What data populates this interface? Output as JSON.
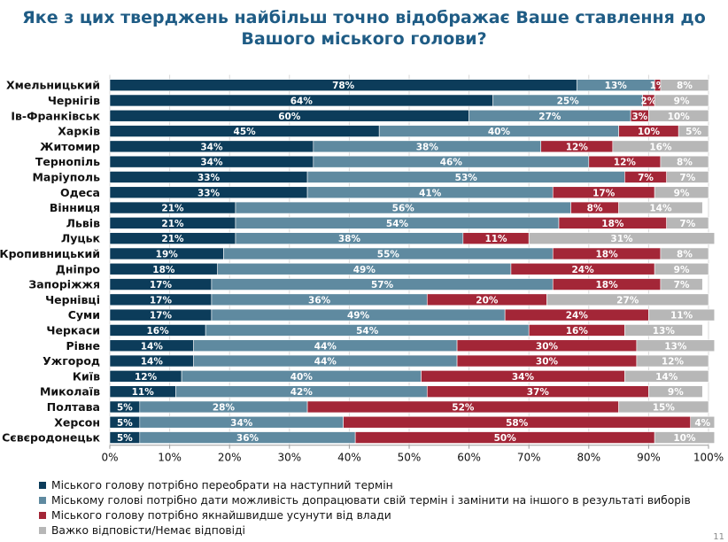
{
  "title_lines": [
    "Яке з цих тверджень найбільш точно відображає Ваше ставлення до",
    "Вашого міського голови?"
  ],
  "page_number": "11",
  "colors": {
    "title": "#1f5c85",
    "series": [
      "#0c3c5a",
      "#5f8aa0",
      "#a32637",
      "#b7b7b7"
    ]
  },
  "chart_data": {
    "type": "bar",
    "orientation": "horizontal",
    "stacked": true,
    "title": "Яке з цих тверджень найбільш точно відображає Ваше ставлення до Вашого міського голови?",
    "xlim": [
      0,
      100
    ],
    "x_ticks": [
      "0%",
      "10%",
      "20%",
      "30%",
      "40%",
      "50%",
      "60%",
      "70%",
      "80%",
      "90%",
      "100%"
    ],
    "grid": true,
    "legend_position": "bottom",
    "categories": [
      "Хмельницький",
      "Чернігів",
      "Ів-Франківськ",
      "Харків",
      "Житомир",
      "Тернопіль",
      "Маріуполь",
      "Одеса",
      "Вінниця",
      "Львів",
      "Луцьк",
      "Кропивницький",
      "Дніпро",
      "Запоріжжя",
      "Чернівці",
      "Суми",
      "Черкаси",
      "Рівне",
      "Ужгород",
      "Київ",
      "Миколаїв",
      "Полтава",
      "Херсон",
      "Сєвєродонецьк"
    ],
    "series": [
      {
        "name": "Міського голову  потрібно переобрати на наступний термін",
        "color": "#0c3c5a",
        "values": [
          78,
          64,
          60,
          45,
          34,
          34,
          33,
          33,
          21,
          21,
          21,
          19,
          18,
          17,
          17,
          17,
          16,
          14,
          14,
          12,
          11,
          5,
          5,
          5
        ]
      },
      {
        "name": "Міському голові потрібно дати можливість допрацювати свій термін і замінити на іншого в результаті виборів",
        "color": "#5f8aa0",
        "values": [
          13,
          25,
          27,
          40,
          38,
          46,
          53,
          41,
          56,
          54,
          38,
          55,
          49,
          57,
          36,
          49,
          54,
          44,
          44,
          40,
          42,
          28,
          34,
          36
        ]
      },
      {
        "name": "Міського голову потрібно якнайшвидше усунути від влади",
        "color": "#a32637",
        "values": [
          1,
          2,
          3,
          10,
          12,
          12,
          7,
          17,
          8,
          18,
          11,
          18,
          24,
          18,
          20,
          24,
          16,
          30,
          30,
          34,
          37,
          52,
          58,
          50
        ]
      },
      {
        "name": "Важко відповісти/Немає відповіді",
        "color": "#b7b7b7",
        "values": [
          8,
          9,
          10,
          5,
          16,
          8,
          7,
          9,
          14,
          7,
          31,
          8,
          9,
          7,
          27,
          11,
          13,
          13,
          12,
          14,
          9,
          15,
          4,
          10
        ]
      }
    ]
  }
}
